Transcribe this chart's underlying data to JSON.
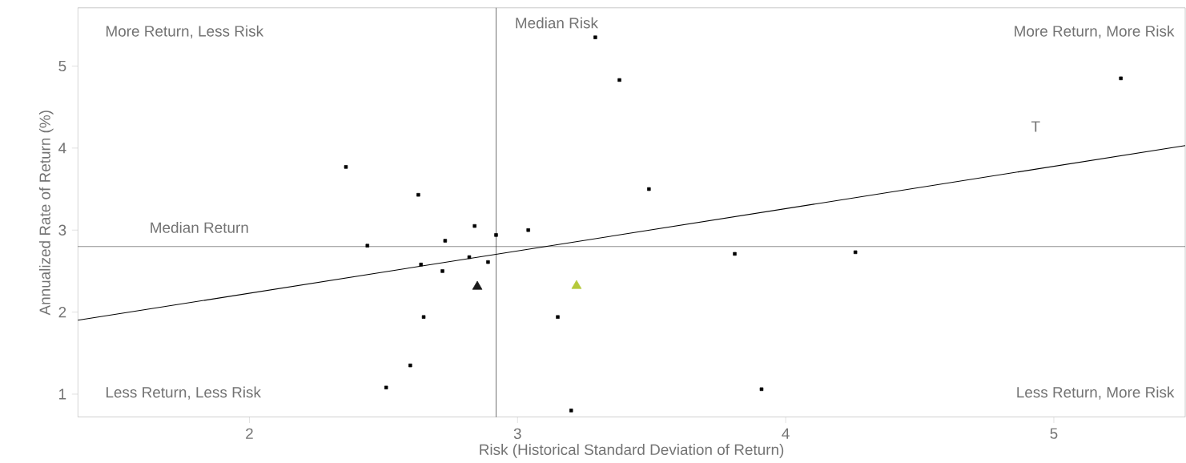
{
  "chart_data": {
    "type": "scatter",
    "xlabel": "Risk (Historical Standard Deviation of Return)",
    "ylabel": "Annualized Rate of Return (%)",
    "xlim": [
      1.36,
      5.49
    ],
    "ylim": [
      0.72,
      5.71
    ],
    "xticks": [
      2,
      3,
      4,
      5
    ],
    "yticks": [
      1,
      2,
      3,
      4,
      5
    ],
    "grid": false,
    "series": [
      {
        "marker": "square",
        "color": "#000000",
        "x": [
          2.36,
          2.44,
          2.51,
          2.6,
          2.63,
          2.64,
          2.65,
          2.73,
          2.72,
          2.82,
          2.84,
          2.89,
          2.92,
          3.04,
          3.15,
          3.2,
          3.29,
          3.38,
          3.49,
          3.81,
          3.91,
          4.26,
          5.25
        ],
        "values": [
          3.77,
          2.81,
          1.08,
          1.35,
          3.43,
          2.58,
          1.94,
          2.87,
          2.5,
          2.67,
          3.05,
          2.61,
          2.94,
          3.0,
          1.94,
          0.8,
          5.35,
          4.83,
          3.5,
          2.71,
          1.06,
          2.73,
          4.85
        ]
      },
      {
        "marker": "triangle",
        "color": "#1a1a1a",
        "x": [
          2.85
        ],
        "values": [
          2.31
        ]
      },
      {
        "marker": "triangle",
        "color": "#b5c93a",
        "x": [
          3.22
        ],
        "values": [
          2.32
        ]
      },
      {
        "type": "line",
        "marker": "none",
        "color": "#000000",
        "x": [
          1.36,
          5.49
        ],
        "values": [
          1.9,
          4.03
        ]
      }
    ],
    "ref_lines": [
      {
        "axis": "y",
        "value": 2.8,
        "label": "Median Return",
        "color": "#333333"
      },
      {
        "axis": "x",
        "value": 2.92,
        "label": "Median Risk",
        "color": "#333333"
      }
    ],
    "annotations": [
      "More Return, Less Risk",
      "More Return, More Risk",
      "Less Return, Less Risk",
      "Less Return, More Risk",
      "T"
    ]
  }
}
